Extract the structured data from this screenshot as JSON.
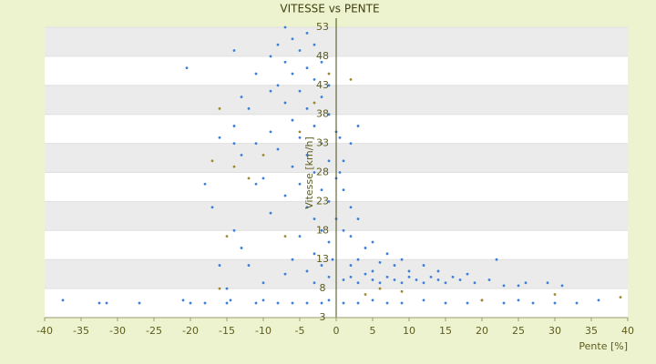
{
  "chart_data": {
    "type": "scatter",
    "title": "VITESSE vs PENTE",
    "x_label": "Pente [%]",
    "y_label": "Vitesse [km/h]",
    "xlim": [
      -40,
      40
    ],
    "xticks": [
      -40,
      -35,
      -30,
      -25,
      -20,
      -15,
      -10,
      -5,
      0,
      5,
      10,
      15,
      20,
      25,
      30,
      35,
      40
    ],
    "ylim": [
      3,
      53
    ],
    "yticks": [
      3,
      8,
      13,
      18,
      23,
      28,
      33,
      38,
      43,
      48,
      53
    ],
    "grid": true,
    "series": [
      {
        "color": "#3a7fd5",
        "x": [
          -37.5,
          -32.5,
          -31.5,
          -27,
          -21,
          -20,
          -18,
          -15,
          -14.5,
          -11,
          -10,
          -8,
          -6,
          -4,
          -2,
          -1,
          1,
          3,
          5,
          7,
          9,
          12,
          15,
          18,
          20,
          23,
          25,
          27,
          30,
          33,
          36,
          1,
          2,
          3,
          4,
          5,
          6,
          7,
          8,
          9,
          10,
          11,
          12,
          13,
          14,
          15,
          16,
          17,
          19,
          21,
          23,
          25,
          26,
          29,
          31,
          5,
          8,
          3,
          2,
          10,
          6,
          4,
          2,
          1,
          3,
          5,
          7,
          1,
          2,
          0.5,
          1,
          2,
          3,
          0.5,
          9,
          12,
          14,
          18,
          22,
          -7,
          -6,
          -8,
          -5,
          -9,
          -7,
          -4,
          -6,
          -3,
          -8,
          -5,
          -2,
          -7,
          -4,
          -1,
          -6,
          -3,
          -9,
          -5,
          -2,
          -8,
          -4,
          -1,
          -6,
          -3,
          -10,
          -5,
          -2,
          -7,
          -1,
          -4,
          -9,
          -3,
          -2,
          -5,
          -1,
          -3,
          -6,
          -2,
          -4,
          -1,
          -7,
          -3,
          -10,
          -12,
          -13,
          -14,
          -11,
          -13,
          -14,
          -13,
          -11,
          -14,
          -20.5,
          -17,
          -18,
          -16,
          -15,
          -14,
          -16,
          -12,
          -9,
          -11,
          -4,
          -2,
          -1,
          -3,
          0,
          0,
          0,
          -0.5
        ],
        "y": [
          6,
          5.5,
          5.5,
          5.5,
          6,
          5.5,
          5.5,
          5.5,
          6,
          5.5,
          6,
          5.5,
          5.5,
          5.5,
          5.5,
          6,
          5.5,
          5.5,
          6,
          5.5,
          5.5,
          6,
          5.5,
          5.5,
          6,
          5.5,
          6,
          5.5,
          5.5,
          5.5,
          6,
          9.5,
          10,
          9,
          10.5,
          9.5,
          9,
          10,
          9.5,
          9,
          10,
          9.5,
          9,
          10,
          9.5,
          9,
          10,
          9.5,
          9,
          9.5,
          8.5,
          8.5,
          9,
          9,
          8.5,
          11,
          12,
          13,
          12,
          11,
          12.5,
          15,
          17,
          18,
          20,
          16,
          14,
          25,
          22,
          28,
          30,
          33,
          36,
          34,
          13,
          12,
          11,
          10.5,
          13,
          53,
          51,
          50,
          49,
          48,
          47,
          46,
          45,
          44,
          43,
          42,
          41,
          40,
          39,
          38,
          37,
          36,
          35,
          34,
          33,
          32,
          31,
          30,
          29,
          28,
          27,
          26,
          25,
          24,
          23,
          22,
          21,
          20,
          18,
          17,
          16,
          14,
          13,
          12,
          11,
          10,
          10.5,
          9,
          9,
          12,
          15,
          18,
          26,
          31,
          36,
          41,
          45,
          49,
          46,
          22,
          26,
          12,
          8,
          33,
          34,
          39,
          42,
          33,
          52,
          47,
          43,
          50,
          20,
          27,
          35,
          13
        ]
      },
      {
        "color": "#9a8a2a",
        "x": [
          -16,
          -17,
          -14,
          -15,
          -12,
          -10,
          -5,
          -3,
          -1,
          2,
          4,
          6,
          9,
          -7,
          -16,
          20,
          30,
          39
        ],
        "y": [
          39,
          30,
          29,
          17,
          27,
          31,
          35,
          40,
          45,
          44,
          7,
          8,
          7.5,
          17,
          8,
          6,
          7,
          6.5
        ]
      }
    ]
  }
}
